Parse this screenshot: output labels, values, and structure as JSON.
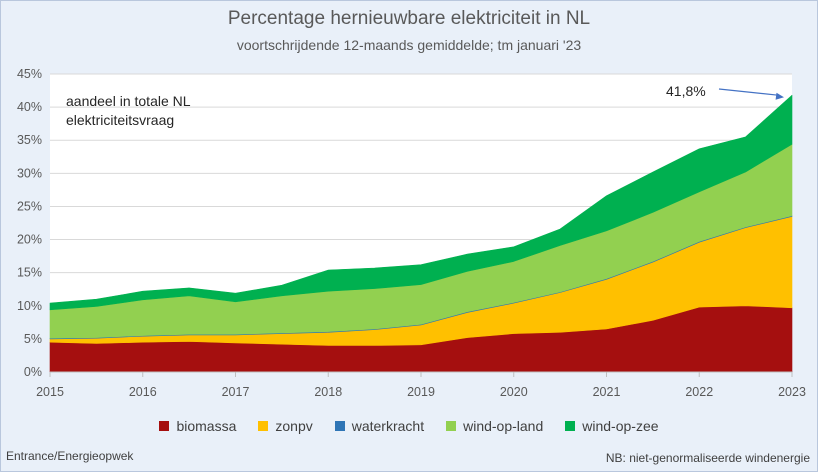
{
  "header": {
    "title": "Percentage hernieuwbare elektriciteit in NL",
    "subtitle": "voortschrijdende 12-maands gemiddelde; tm januari '23"
  },
  "chart_data": {
    "type": "area",
    "stacked": true,
    "title": "Percentage hernieuwbare elektriciteit in NL",
    "subtitle": "voortschrijdende 12-maands gemiddelde; tm januari '23",
    "xlabel": "",
    "ylabel": "",
    "xlim": [
      2015,
      2023
    ],
    "ylim": [
      0,
      45
    ],
    "x_ticks": [
      "2015",
      "2016",
      "2017",
      "2018",
      "2019",
      "2020",
      "2021",
      "2022",
      "2023"
    ],
    "y_ticks": [
      "0%",
      "5%",
      "10%",
      "15%",
      "20%",
      "25%",
      "30%",
      "35%",
      "40%",
      "45%"
    ],
    "grid": "horizontal",
    "legend_position": "bottom",
    "x": [
      2015.0,
      2015.5,
      2016.0,
      2016.5,
      2017.0,
      2017.5,
      2018.0,
      2018.5,
      2019.0,
      2019.5,
      2020.0,
      2020.5,
      2021.0,
      2021.5,
      2022.0,
      2022.5,
      2023.0
    ],
    "series": [
      {
        "name": "biomassa",
        "color": "#a50f0f",
        "values": [
          4.5,
          4.3,
          4.5,
          4.6,
          4.4,
          4.2,
          4.0,
          4.0,
          4.1,
          5.2,
          5.8,
          6.0,
          6.5,
          7.8,
          9.8,
          10.0,
          9.7
        ]
      },
      {
        "name": "zonpv",
        "color": "#ffc000",
        "values": [
          0.5,
          0.8,
          0.9,
          1.0,
          1.2,
          1.6,
          2.0,
          2.4,
          3.0,
          3.8,
          4.6,
          6.0,
          7.5,
          8.8,
          9.8,
          11.8,
          13.8
        ]
      },
      {
        "name": "waterkracht",
        "color": "#2e75b6",
        "values": [
          0.1,
          0.1,
          0.1,
          0.1,
          0.1,
          0.1,
          0.1,
          0.1,
          0.1,
          0.1,
          0.1,
          0.1,
          0.1,
          0.1,
          0.1,
          0.1,
          0.1
        ]
      },
      {
        "name": "wind-op-land",
        "color": "#92d050",
        "values": [
          4.3,
          4.7,
          5.4,
          5.8,
          4.9,
          5.6,
          6.1,
          6.1,
          6.0,
          6.1,
          6.2,
          7.0,
          7.2,
          7.4,
          7.5,
          8.3,
          10.8
        ]
      },
      {
        "name": "wind-op-zee",
        "color": "#00b050",
        "values": [
          1.0,
          1.1,
          1.3,
          1.2,
          1.3,
          1.6,
          3.2,
          3.1,
          3.0,
          2.6,
          2.2,
          2.5,
          5.3,
          6.1,
          6.5,
          5.3,
          7.4
        ]
      }
    ],
    "annotations": [
      {
        "text": "aandeel in totale NL",
        "position": "top-left"
      },
      {
        "text": "elektriciteitsvraag",
        "position": "top-left"
      },
      {
        "text": "41,8%",
        "points_to_x": 2023.0,
        "points_to_y": 41.8
      }
    ]
  },
  "inset_label": {
    "line1": "aandeel in totale NL",
    "line2": "elektriciteitsvraag"
  },
  "callout": {
    "text": "41,8%"
  },
  "legend": [
    {
      "label": "biomassa",
      "color": "#a50f0f"
    },
    {
      "label": "zonpv",
      "color": "#ffc000"
    },
    {
      "label": "waterkracht",
      "color": "#2e75b6"
    },
    {
      "label": "wind-op-land",
      "color": "#92d050"
    },
    {
      "label": "wind-op-zee",
      "color": "#00b050"
    }
  ],
  "source": "Entrance/Energieopwek",
  "footnote": "NB: niet-genormaliseerde windenergie"
}
